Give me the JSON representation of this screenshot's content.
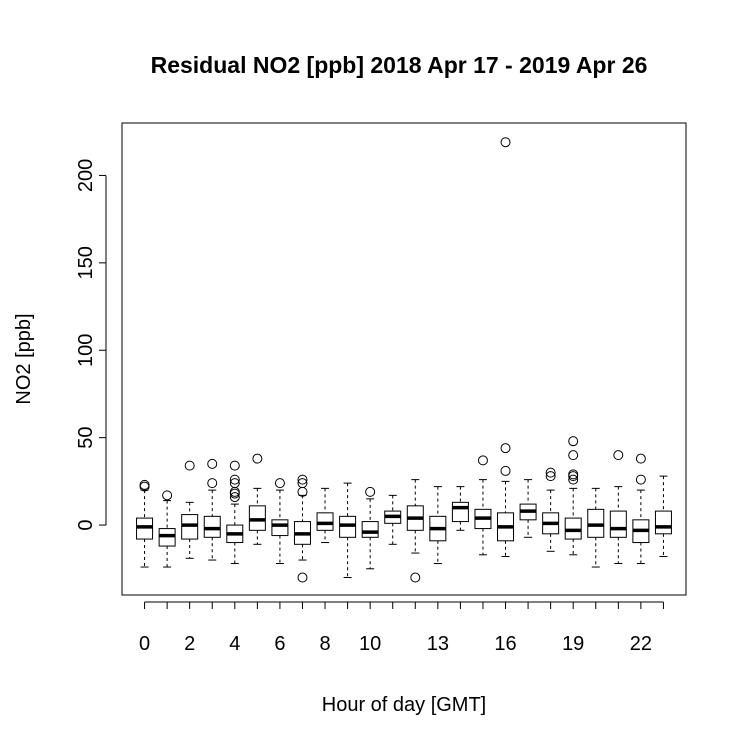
{
  "chart_data": {
    "type": "boxplot",
    "title": "Residual NO2 [ppb] 2018 Apr 17 - 2019 Apr 26",
    "xlabel": "Hour of day [GMT]",
    "ylabel": "NO2 [ppb]",
    "ylim": [
      -40,
      230
    ],
    "yticks": [
      0,
      50,
      100,
      150,
      200
    ],
    "xlim": [
      -1,
      24
    ],
    "categories": [
      0,
      1,
      2,
      3,
      4,
      5,
      6,
      7,
      8,
      9,
      10,
      11,
      12,
      13,
      14,
      15,
      16,
      17,
      18,
      19,
      20,
      21,
      22,
      23
    ],
    "xtick_labels": [
      {
        "x": 0,
        "label": "0"
      },
      {
        "x": 2,
        "label": "2"
      },
      {
        "x": 4,
        "label": "4"
      },
      {
        "x": 6,
        "label": "6"
      },
      {
        "x": 8,
        "label": "8"
      },
      {
        "x": 10,
        "label": "10"
      },
      {
        "x": 13,
        "label": "13"
      },
      {
        "x": 16,
        "label": "16"
      },
      {
        "x": 19,
        "label": "19"
      },
      {
        "x": 22,
        "label": "22"
      }
    ],
    "boxes": [
      {
        "hour": 0,
        "lw": -24,
        "q1": -8,
        "med": -1,
        "q3": 4,
        "uw": 20,
        "outliers": [
          22,
          23
        ]
      },
      {
        "hour": 1,
        "lw": -24,
        "q1": -12,
        "med": -6,
        "q3": -2,
        "uw": 14,
        "outliers": [
          17
        ]
      },
      {
        "hour": 2,
        "lw": -19,
        "q1": -8,
        "med": 0,
        "q3": 6,
        "uw": 13,
        "outliers": [
          34
        ]
      },
      {
        "hour": 3,
        "lw": -20,
        "q1": -7,
        "med": -2,
        "q3": 5,
        "uw": 20,
        "outliers": [
          24,
          35
        ]
      },
      {
        "hour": 4,
        "lw": -22,
        "q1": -10,
        "med": -5,
        "q3": 0,
        "uw": 12,
        "outliers": [
          16,
          18,
          19,
          24,
          26,
          34
        ]
      },
      {
        "hour": 5,
        "lw": -11,
        "q1": -3,
        "med": 3,
        "q3": 11,
        "uw": 21,
        "outliers": [
          38
        ]
      },
      {
        "hour": 6,
        "lw": -22,
        "q1": -6,
        "med": 0,
        "q3": 3,
        "uw": 20,
        "outliers": [
          24
        ]
      },
      {
        "hour": 7,
        "lw": -20,
        "q1": -11,
        "med": -5,
        "q3": 2,
        "uw": 17,
        "outliers": [
          -30,
          19,
          24,
          26
        ]
      },
      {
        "hour": 8,
        "lw": -10,
        "q1": -3,
        "med": 1,
        "q3": 7,
        "uw": 21,
        "outliers": []
      },
      {
        "hour": 9,
        "lw": -30,
        "q1": -7,
        "med": 0,
        "q3": 5,
        "uw": 24,
        "outliers": []
      },
      {
        "hour": 10,
        "lw": -25,
        "q1": -7,
        "med": -4,
        "q3": 2,
        "uw": 15,
        "outliers": [
          19
        ]
      },
      {
        "hour": 11,
        "lw": -11,
        "q1": 1,
        "med": 5,
        "q3": 8,
        "uw": 17,
        "outliers": []
      },
      {
        "hour": 12,
        "lw": -16,
        "q1": -3,
        "med": 4,
        "q3": 11,
        "uw": 26,
        "outliers": [
          -30
        ]
      },
      {
        "hour": 13,
        "lw": -22,
        "q1": -9,
        "med": -2,
        "q3": 5,
        "uw": 22,
        "outliers": []
      },
      {
        "hour": 14,
        "lw": -3,
        "q1": 2,
        "med": 10,
        "q3": 13,
        "uw": 22,
        "outliers": []
      },
      {
        "hour": 15,
        "lw": -17,
        "q1": -2,
        "med": 4,
        "q3": 9,
        "uw": 26,
        "outliers": [
          37
        ]
      },
      {
        "hour": 16,
        "lw": -18,
        "q1": -9,
        "med": -1,
        "q3": 7,
        "uw": 25,
        "outliers": [
          31,
          44,
          219
        ]
      },
      {
        "hour": 17,
        "lw": -7,
        "q1": 3,
        "med": 8,
        "q3": 12,
        "uw": 26,
        "outliers": []
      },
      {
        "hour": 18,
        "lw": -15,
        "q1": -5,
        "med": 1,
        "q3": 7,
        "uw": 20,
        "outliers": [
          28,
          30
        ]
      },
      {
        "hour": 19,
        "lw": -17,
        "q1": -8,
        "med": -3,
        "q3": 4,
        "uw": 21,
        "outliers": [
          26,
          28,
          29,
          40,
          48
        ]
      },
      {
        "hour": 20,
        "lw": -24,
        "q1": -7,
        "med": 0,
        "q3": 9,
        "uw": 21,
        "outliers": []
      },
      {
        "hour": 21,
        "lw": -22,
        "q1": -7,
        "med": -2,
        "q3": 8,
        "uw": 22,
        "outliers": [
          40
        ]
      },
      {
        "hour": 22,
        "lw": -22,
        "q1": -10,
        "med": -3,
        "q3": 3,
        "uw": 20,
        "outliers": [
          26,
          38
        ]
      },
      {
        "hour": 23,
        "lw": -18,
        "q1": -5,
        "med": -1,
        "q3": 8,
        "uw": 28,
        "outliers": []
      }
    ]
  }
}
